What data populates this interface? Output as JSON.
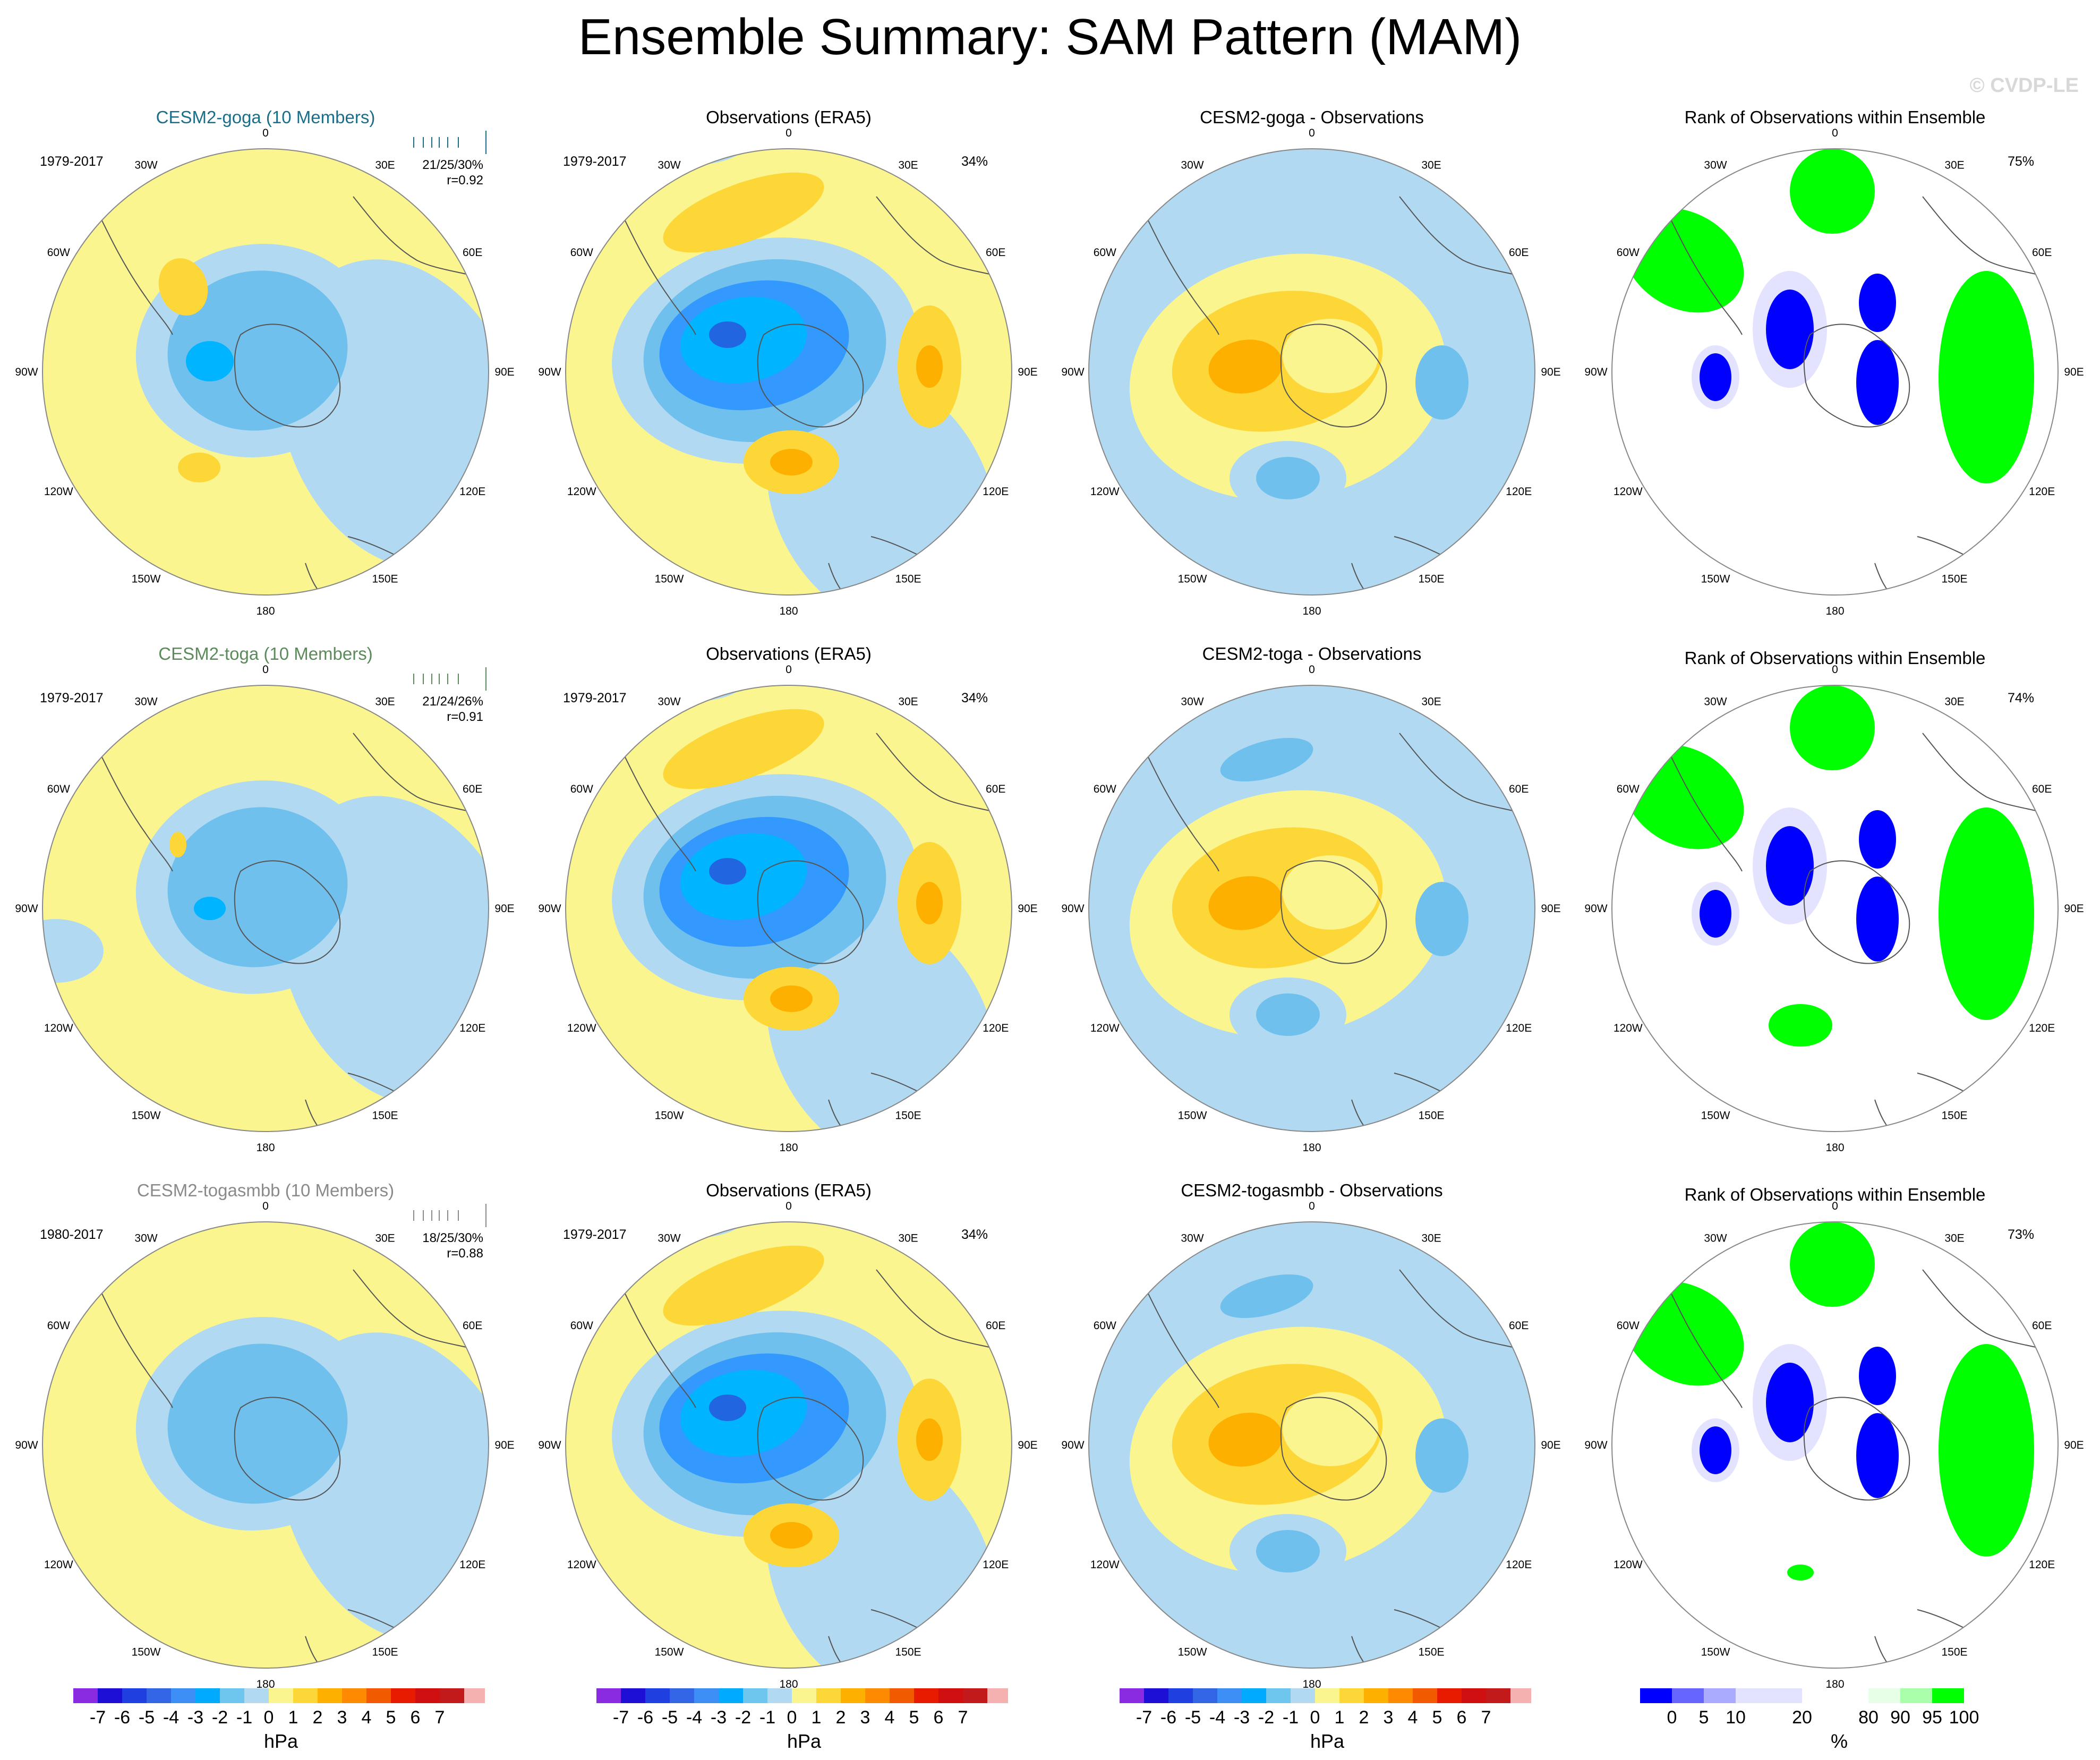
{
  "title": "Ensemble Summary: SAM Pattern (MAM)",
  "watermark": "© CVDP-LE",
  "lon_labels": [
    {
      "text": "0",
      "deg": 0
    },
    {
      "text": "30E",
      "deg": 30
    },
    {
      "text": "60E",
      "deg": 60
    },
    {
      "text": "90E",
      "deg": 90
    },
    {
      "text": "120E",
      "deg": 120
    },
    {
      "text": "150E",
      "deg": 150
    },
    {
      "text": "180",
      "deg": 180
    },
    {
      "text": "150W",
      "deg": 210
    },
    {
      "text": "120W",
      "deg": 240
    },
    {
      "text": "90W",
      "deg": 270
    },
    {
      "text": "60W",
      "deg": 300
    },
    {
      "text": "30W",
      "deg": 330
    }
  ],
  "colors": {
    "pale_yellow": "#fbf590",
    "yellow": "#fdd637",
    "orange": "#fdb000",
    "dark_orange": "#f59a00",
    "pale_blue": "#b1daf2",
    "mid_blue": "#70c0ee",
    "blue": "#3399ff",
    "cyan": "#00b4ff",
    "deep_blue": "#2166e0",
    "green": "#00ff00",
    "light_green": "#e6ffe6",
    "rank_blue": "#0000ff",
    "rank_lavender": "#e3e3ff",
    "coast": "#555555",
    "circle_edge": "#888888"
  },
  "rows": [
    {
      "model_title": "CESM2-goga (10 Members)",
      "model_title_color": "#1a6e8a",
      "model_period": "1979-2017",
      "model_stats_1": "21/25/30%",
      "model_stats_2": "r=0.92",
      "obs_title": "Observations (ERA5)",
      "obs_period": "1979-2017",
      "obs_pct": "34%",
      "diff_title": "CESM2-goga - Observations",
      "rank_title": "Rank of Observations within Ensemble",
      "rank_pct": "75%"
    },
    {
      "model_title": "CESM2-toga (10 Members)",
      "model_title_color": "#5b8a5b",
      "model_period": "1979-2017",
      "model_stats_1": "21/24/26%",
      "model_stats_2": "r=0.91",
      "obs_title": "Observations (ERA5)",
      "obs_period": "1979-2017",
      "obs_pct": "34%",
      "diff_title": "CESM2-toga - Observations",
      "rank_title": "Rank of Observations within Ensemble",
      "rank_pct": "74%"
    },
    {
      "model_title": "CESM2-togasmbb (10 Members)",
      "model_title_color": "#8a8a8a",
      "model_period": "1980-2017",
      "model_stats_1": "18/25/30%",
      "model_stats_2": "r=0.88",
      "obs_title": "Observations (ERA5)",
      "obs_period": "1979-2017",
      "obs_pct": "34%",
      "diff_title": "CESM2-togasmbb - Observations",
      "rank_title": "Rank of Observations within Ensemble",
      "rank_pct": "73%"
    }
  ],
  "hpa_colorbar": {
    "unit": "hPa",
    "labels": [
      "-7",
      "-6",
      "-5",
      "-4",
      "-3",
      "-2",
      "-1",
      "0",
      "1",
      "2",
      "3",
      "4",
      "5",
      "6",
      "7"
    ],
    "colors": [
      "#8a2be2",
      "#1e0fd6",
      "#1f3fe0",
      "#3366e6",
      "#3d8ef5",
      "#00aaff",
      "#6ec6ef",
      "#b1daf2",
      "#fbf590",
      "#fdd637",
      "#fdb000",
      "#fd8a00",
      "#f25a00",
      "#e81b00",
      "#d01010",
      "#c21a1a",
      "#f5b0b0"
    ]
  },
  "rank_colorbar": {
    "unit": "%",
    "labels": [
      "0",
      "5",
      "10",
      "20",
      "80",
      "90",
      "95",
      "100"
    ],
    "colors": [
      "#0000ff",
      "#6666ff",
      "#aaaaff",
      "#e3e3ff",
      "#ffffff",
      "#e6ffe6",
      "#aaffaa",
      "#00ff00"
    ]
  }
}
